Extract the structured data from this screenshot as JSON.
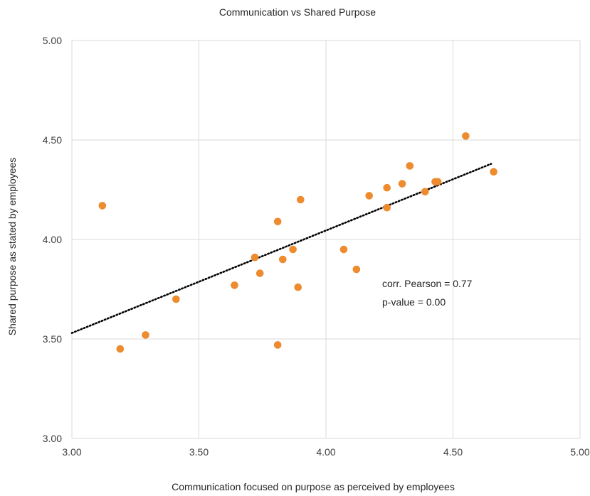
{
  "chart_data": {
    "type": "scatter",
    "title": "Communication vs Shared Purpose",
    "xlabel": "Communication focused on purpose as perceived by employees",
    "ylabel": "Shared purpose as stated by employees",
    "xlim": [
      3.0,
      5.0
    ],
    "ylim": [
      3.0,
      5.0
    ],
    "x_ticks": [
      "3.00",
      "3.50",
      "4.00",
      "4.50",
      "5.00"
    ],
    "y_ticks": [
      "3.00",
      "3.50",
      "4.00",
      "4.50",
      "5.00"
    ],
    "grid": true,
    "legend": "none",
    "point_color": "#ED8B2E",
    "trendline": {
      "style": "dotted",
      "color": "#000000",
      "x": [
        3.0,
        4.65
      ],
      "y": [
        3.53,
        4.38
      ]
    },
    "annotations": [
      "corr. Pearson = 0.77",
      "p-value = 0.00"
    ],
    "points": [
      {
        "x": 3.12,
        "y": 4.17
      },
      {
        "x": 3.19,
        "y": 3.45
      },
      {
        "x": 3.29,
        "y": 3.52
      },
      {
        "x": 3.41,
        "y": 3.7
      },
      {
        "x": 3.64,
        "y": 3.77
      },
      {
        "x": 3.72,
        "y": 3.91
      },
      {
        "x": 3.74,
        "y": 3.83
      },
      {
        "x": 3.81,
        "y": 4.09
      },
      {
        "x": 3.81,
        "y": 3.47
      },
      {
        "x": 3.83,
        "y": 3.9
      },
      {
        "x": 3.87,
        "y": 3.95
      },
      {
        "x": 3.89,
        "y": 3.76
      },
      {
        "x": 3.9,
        "y": 4.2
      },
      {
        "x": 4.07,
        "y": 3.95
      },
      {
        "x": 4.12,
        "y": 3.85
      },
      {
        "x": 4.17,
        "y": 4.22
      },
      {
        "x": 4.24,
        "y": 4.26
      },
      {
        "x": 4.24,
        "y": 4.16
      },
      {
        "x": 4.3,
        "y": 4.28
      },
      {
        "x": 4.33,
        "y": 4.37
      },
      {
        "x": 4.39,
        "y": 4.24
      },
      {
        "x": 4.43,
        "y": 4.29
      },
      {
        "x": 4.44,
        "y": 4.29
      },
      {
        "x": 4.55,
        "y": 4.52
      },
      {
        "x": 4.66,
        "y": 4.34
      }
    ]
  }
}
